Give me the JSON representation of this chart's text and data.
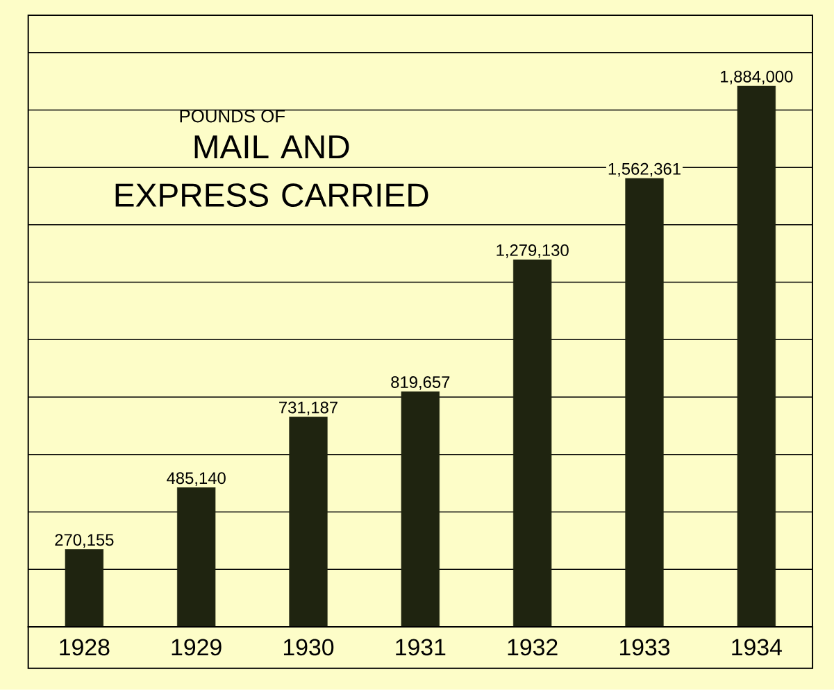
{
  "chart_data": {
    "type": "bar",
    "title": "MAIL AND EXPRESS CARRIED",
    "subtitle": "POUNDS OF",
    "categories": [
      "1928",
      "1929",
      "1930",
      "1931",
      "1932",
      "1933",
      "1934"
    ],
    "values": [
      270155,
      485140,
      731187,
      819657,
      1279130,
      1562361,
      1884000
    ],
    "value_labels": [
      "270,155",
      "485,140",
      "731,187",
      "819,657",
      "1,279,130",
      "1,562,361",
      "1,884,000"
    ],
    "color": "#1f2410",
    "ylim": [
      0,
      2130000
    ],
    "yticks": [
      {
        "value": 0,
        "label": null
      },
      {
        "value": 200000,
        "label": null
      },
      {
        "value": 400000,
        "label": null
      },
      {
        "value": 600000,
        "label": null
      },
      {
        "value": 800000,
        "label": null
      },
      {
        "value": 1000000,
        "label": null
      },
      {
        "value": 1200000,
        "label": null
      },
      {
        "value": 1400000,
        "label": null
      },
      {
        "value": 1600000,
        "label": null
      },
      {
        "value": 1800000,
        "label": null
      },
      {
        "value": 2000000,
        "label": null
      }
    ],
    "grid": "y",
    "tick_labels": "x"
  }
}
